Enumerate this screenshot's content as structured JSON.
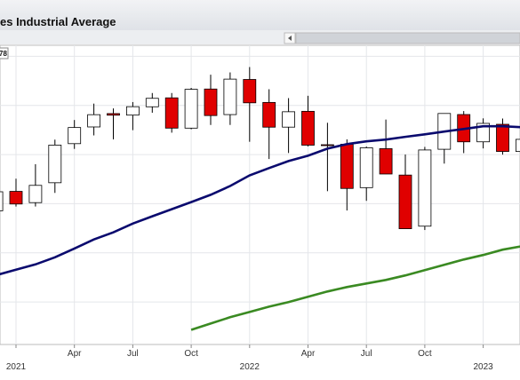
{
  "chart_data": {
    "type": "candlestick",
    "title": "es Industrial Average",
    "price_label": "78",
    "x": [
      "2020-12",
      "2021-01",
      "2021-02",
      "2021-03",
      "2021-04",
      "2021-05",
      "2021-06",
      "2021-07",
      "2021-08",
      "2021-09",
      "2021-10",
      "2021-11",
      "2021-12",
      "2022-01",
      "2022-02",
      "2022-03",
      "2022-04",
      "2022-05",
      "2022-06",
      "2022-07",
      "2022-08",
      "2022-09",
      "2022-10",
      "2022-11",
      "2022-12",
      "2023-01",
      "2023-02",
      "2023-03"
    ],
    "open": [
      29638,
      30627,
      30054,
      31065,
      33054,
      33904,
      34584,
      34507,
      34931,
      35385,
      33844,
      35834,
      34533,
      36321,
      35152,
      33895,
      34700,
      33000,
      33026,
      30816,
      32800,
      31456,
      28855,
      32769,
      34536,
      33148,
      34039,
      32656
    ],
    "high": [
      30637,
      31272,
      32010,
      33259,
      34257,
      35092,
      34849,
      35171,
      35631,
      35631,
      35892,
      36566,
      36680,
      36952,
      35824,
      35372,
      35493,
      34117,
      33272,
      32910,
      34281,
      32504,
      32889,
      34595,
      34712,
      34342,
      34335,
      33572
    ],
    "low": [
      29599,
      29857,
      29856,
      30548,
      32787,
      33474,
      33272,
      33741,
      34628,
      33613,
      33785,
      34006,
      34006,
      33150,
      32272,
      32578,
      32913,
      30636,
      29653,
      30144,
      31508,
      28715,
      28660,
      32039,
      32573,
      32812,
      32500,
      31429
    ],
    "close": [
      30606,
      29983,
      30932,
      32981,
      33875,
      34529,
      34503,
      34935,
      35361,
      33844,
      35820,
      34484,
      36338,
      35132,
      33893,
      34678,
      32977,
      32990,
      30775,
      32845,
      31510,
      28726,
      32733,
      34590,
      33147,
      34086,
      32657,
      33274
    ],
    "up_color": "#ffffff",
    "down_color": "#e00000",
    "moving_averages": [
      {
        "color": "#0a0a6e",
        "values": [
          26370,
          26640,
          26910,
          27270,
          27720,
          28180,
          28540,
          28990,
          29360,
          29720,
          30080,
          30450,
          30900,
          31440,
          31810,
          32170,
          32440,
          32800,
          33030,
          33170,
          33260,
          33400,
          33530,
          33670,
          33800,
          33940,
          33940,
          33890
        ]
      },
      {
        "color": "#3a8a22",
        "values": [
          null,
          null,
          null,
          null,
          null,
          null,
          null,
          null,
          null,
          null,
          23580,
          23900,
          24220,
          24490,
          24760,
          24990,
          25260,
          25530,
          25760,
          25940,
          26120,
          26350,
          26620,
          26890,
          27160,
          27390,
          27660,
          27840
        ]
      }
    ],
    "ylim": [
      22835,
      38060
    ],
    "yticks": [
      25000,
      27500,
      30000,
      32500,
      35000,
      37500
    ],
    "xticks": [
      {
        "value": "2021-01",
        "label": "2021"
      },
      {
        "value": "2021-04",
        "label": "Apr"
      },
      {
        "value": "2021-07",
        "label": "Jul"
      },
      {
        "value": "2021-10",
        "label": "Oct"
      },
      {
        "value": "2022-01",
        "label": "2022"
      },
      {
        "value": "2022-04",
        "label": "Apr"
      },
      {
        "value": "2022-07",
        "label": "Jul"
      },
      {
        "value": "2022-10",
        "label": "Oct"
      },
      {
        "value": "2023-01",
        "label": "2023"
      }
    ],
    "grid": true
  }
}
